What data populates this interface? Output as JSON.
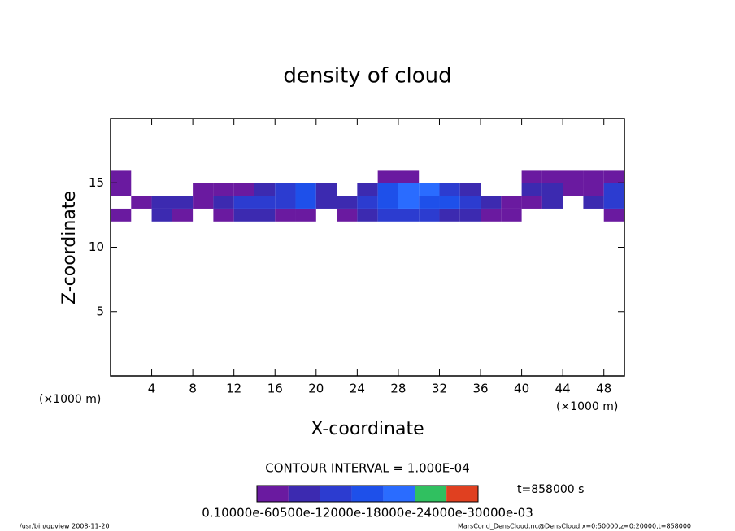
{
  "chart_data": {
    "type": "heatmap",
    "title": "density of cloud",
    "x_label": "X-coordinate",
    "y_label": "Z-coordinate",
    "x_unit_label": "(×1000 m)",
    "xlim": [
      0,
      50
    ],
    "ylim": [
      0,
      20
    ],
    "xticks": [
      4,
      8,
      12,
      16,
      20,
      24,
      28,
      32,
      36,
      40,
      44,
      48
    ],
    "yticks": [
      5,
      10,
      15
    ],
    "xbins": [
      0,
      2,
      4,
      6,
      8,
      10,
      12,
      14,
      16,
      18,
      20,
      22,
      24,
      26,
      28,
      30,
      32,
      34,
      36,
      38,
      40,
      42,
      44,
      46,
      48,
      50
    ],
    "ybins": [
      12,
      13,
      14,
      15,
      16
    ],
    "values": [
      [
        0.0001,
        null,
        0.0002,
        0.0001,
        null,
        0.0001,
        0.0002,
        0.0002,
        0.0001,
        0.0001,
        null,
        0.0001,
        0.0002,
        0.0003,
        0.0003,
        0.0003,
        0.0002,
        0.0002,
        0.0001,
        0.0001,
        null,
        null,
        null,
        null,
        0.0001
      ],
      [
        null,
        0.0001,
        0.0002,
        0.0002,
        0.0001,
        0.0002,
        0.0003,
        0.0003,
        0.0003,
        0.0004,
        0.0002,
        0.0002,
        0.0003,
        0.0004,
        0.0005,
        0.0004,
        0.0004,
        0.0003,
        0.0002,
        0.0001,
        0.0001,
        0.0002,
        null,
        0.0002,
        0.0003
      ],
      [
        0.0001,
        null,
        null,
        null,
        0.0001,
        0.0001,
        0.0001,
        0.0002,
        0.0003,
        0.0004,
        0.0002,
        null,
        0.0002,
        0.0004,
        0.0005,
        0.0005,
        0.0003,
        0.0002,
        null,
        null,
        0.0002,
        0.0002,
        0.0001,
        0.0001,
        0.0003
      ],
      [
        0.0001,
        null,
        null,
        null,
        null,
        null,
        null,
        null,
        null,
        null,
        null,
        null,
        null,
        0.0001,
        0.0001,
        null,
        null,
        null,
        null,
        null,
        0.0001,
        0.0001,
        0.0001,
        0.0001,
        0.0001
      ]
    ],
    "colorbar": {
      "levels": [
        0.0001,
        0.0002,
        0.0003,
        0.0004,
        0.0005,
        0.0006,
        0.0007
      ],
      "colors": [
        "#6a1aa0",
        "#3c2ab0",
        "#2c3cd0",
        "#1e50ea",
        "#2a6cff",
        "#30c060",
        "#e04020"
      ],
      "tick_label": "0.10000e-60500e-12000e-18000e-24000e-30000e-03"
    },
    "contour_interval": "CONTOUR INTERVAL = 1.000E-04",
    "time_label": "t=858000 s",
    "footer_left": "/usr/bin/gpview   2008-11-20",
    "footer_right": "MarsCond_DensCloud.nc@DensCloud,x=0:50000,z=0:20000,t=858000"
  }
}
